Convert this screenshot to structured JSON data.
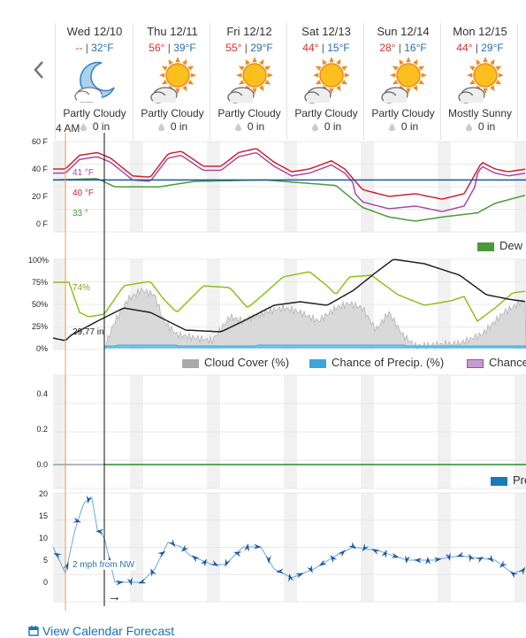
{
  "forecast_days": [
    {
      "day": "Wed 12/10",
      "high": "--",
      "low": "32°F",
      "condition": "Partly Cloudy",
      "precip": "0 in",
      "icon": "night-partly-cloudy-icon"
    },
    {
      "day": "Thu 12/11",
      "high": "56°",
      "low": "39°F",
      "condition": "Partly Cloudy",
      "precip": "0 in",
      "icon": "day-partly-cloudy-icon"
    },
    {
      "day": "Fri 12/12",
      "high": "55°",
      "low": "29°F",
      "condition": "Partly Cloudy",
      "precip": "0 in",
      "icon": "day-partly-cloudy-icon"
    },
    {
      "day": "Sat 12/13",
      "high": "44°",
      "low": "15°F",
      "condition": "Partly Cloudy",
      "precip": "0 in",
      "icon": "day-partly-cloudy-icon"
    },
    {
      "day": "Sun 12/14",
      "high": "28°",
      "low": "16°F",
      "condition": "Partly Cloudy",
      "precip": "0 in",
      "icon": "day-partly-cloudy-icon"
    },
    {
      "day": "Mon 12/15",
      "high": "44°",
      "low": "29°F",
      "condition": "Mostly Sunny",
      "precip": "0 in",
      "icon": "day-mostly-sunny-icon"
    }
  ],
  "current_time": "4 AM",
  "temperature_chart": {
    "y_ticks": [
      "60 F",
      "40 F",
      "20 F",
      "0 F"
    ],
    "labels": {
      "feels_like": "41 °F",
      "temp": "40 °F",
      "dew_point": "33 °"
    },
    "legend": {
      "dew_point": "Dew"
    }
  },
  "sky_chart": {
    "y_ticks": [
      "100%",
      "75%",
      "50%",
      "25%",
      "0%"
    ],
    "labels": {
      "humidity": "74%",
      "pressure": "29.77 in"
    },
    "legend": {
      "cloud_cover": "Cloud Cover (%)",
      "precip_chance": "Chance of Precip. (%)",
      "third": "Chance"
    }
  },
  "precip_chart": {
    "y_ticks": [
      "0.4",
      "0.2",
      "0.0"
    ],
    "legend": {
      "precip": "Pre"
    }
  },
  "wind_chart": {
    "y_ticks": [
      "20",
      "15",
      "10",
      "5",
      "0"
    ],
    "label": "2 mph from NW",
    "arrow_glyph": "→"
  },
  "link_text": "View Calendar Forecast",
  "colors": {
    "high": "#d9302b",
    "low": "#2a6db0",
    "temp": "#cc2233",
    "feels": "#a94aa3",
    "dew": "#4a9a3a",
    "freeze": "#1a5a9a",
    "humidity": "#8cc21a",
    "cloud": "#bdbdbd",
    "precip_chance": "#3aa6dc",
    "wind": "#2a73b8",
    "now_line": "#f0a050"
  }
}
